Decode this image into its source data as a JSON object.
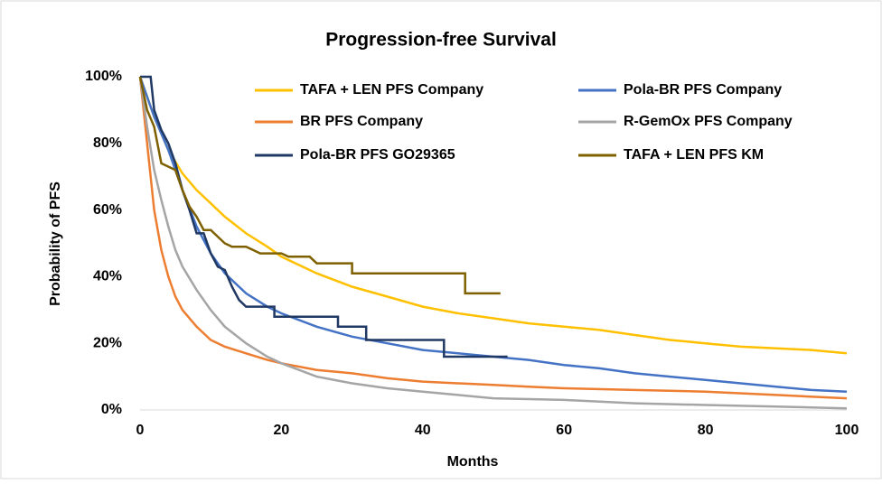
{
  "chart_data": {
    "type": "line",
    "title": "Progression-free Survival",
    "x_label": "Months",
    "y_label": "Probability of PFS",
    "xlim": [
      0,
      100
    ],
    "xticks": [
      0,
      20,
      40,
      60,
      80,
      100
    ],
    "ylim": [
      0,
      100
    ],
    "yticks": [
      {
        "value": 0,
        "label": "0%"
      },
      {
        "value": 20,
        "label": "20%"
      },
      {
        "value": 40,
        "label": "40%"
      },
      {
        "value": 60,
        "label": "60%"
      },
      {
        "value": 80,
        "label": "80%"
      },
      {
        "value": 100,
        "label": "100%"
      }
    ],
    "grid": false,
    "legend": "top",
    "series": [
      {
        "name": "TAFA + LEN PFS Company",
        "color": "#FFC000",
        "x": [
          0,
          2,
          4,
          6,
          8,
          10,
          12,
          15,
          18,
          20,
          25,
          30,
          35,
          40,
          45,
          50,
          55,
          60,
          65,
          70,
          75,
          80,
          85,
          90,
          95,
          100
        ],
        "values": [
          100,
          88,
          78,
          71,
          66,
          62,
          58,
          53,
          49,
          46,
          41,
          37,
          34,
          31,
          29,
          27.5,
          26,
          25,
          24,
          22.5,
          21,
          20,
          19,
          18.5,
          18,
          17
        ]
      },
      {
        "name": "Pola-BR PFS Company",
        "color": "#4472C4",
        "x": [
          0,
          2,
          4,
          6,
          8,
          10,
          12,
          15,
          18,
          20,
          25,
          30,
          35,
          40,
          45,
          50,
          55,
          60,
          65,
          70,
          75,
          80,
          85,
          90,
          95,
          100
        ],
        "values": [
          100,
          88,
          78,
          66,
          55,
          47,
          41,
          35,
          31,
          29,
          25,
          22,
          20,
          18,
          17,
          16,
          15,
          13.5,
          12.5,
          11,
          10,
          9,
          8,
          7,
          6,
          5.5
        ]
      },
      {
        "name": "BR PFS Company",
        "color": "#ED7D31",
        "x": [
          0,
          1,
          2,
          3,
          4,
          5,
          6,
          8,
          10,
          12,
          15,
          18,
          20,
          25,
          30,
          35,
          40,
          45,
          50,
          55,
          60,
          70,
          80,
          90,
          100
        ],
        "values": [
          100,
          80,
          60,
          48,
          40,
          34,
          30,
          25,
          21,
          19,
          17,
          15,
          14,
          12,
          11,
          9.5,
          8.5,
          8,
          7.5,
          7,
          6.5,
          6,
          5.5,
          4.5,
          3.5
        ]
      },
      {
        "name": "R-GemOx PFS Company",
        "color": "#A5A5A5",
        "x": [
          0,
          1,
          2,
          3,
          4,
          5,
          6,
          8,
          10,
          12,
          15,
          18,
          20,
          25,
          30,
          35,
          40,
          45,
          50,
          60,
          65,
          70,
          80,
          90,
          100
        ],
        "values": [
          100,
          85,
          72,
          63,
          55,
          48,
          43,
          36,
          30,
          25,
          20,
          16,
          14,
          10,
          8,
          6.5,
          5.5,
          4.5,
          3.5,
          3,
          2.5,
          2,
          1.5,
          1,
          0.5
        ]
      },
      {
        "name": "Pola-BR PFS GO29365",
        "color": "#203864",
        "x": [
          0,
          1.5,
          2,
          3,
          4,
          5,
          6,
          7,
          8,
          9,
          10,
          11,
          12,
          13,
          14,
          15,
          19,
          19,
          28,
          28,
          32,
          32,
          43,
          43,
          52
        ],
        "values": [
          100,
          100,
          90,
          84,
          80,
          74,
          66,
          60,
          53,
          53,
          47,
          43,
          42,
          37,
          33,
          31,
          31,
          28,
          28,
          25,
          25,
          21,
          21,
          16,
          16
        ]
      },
      {
        "name": "TAFA + LEN PFS KM",
        "color": "#7F6000",
        "x": [
          0,
          1,
          2,
          3,
          5,
          6,
          7,
          8,
          9,
          10,
          11,
          12,
          13,
          15,
          16,
          17,
          20,
          21,
          24,
          25,
          30,
          30,
          46,
          46,
          51
        ],
        "values": [
          100,
          90,
          85,
          74,
          72,
          66,
          61,
          58,
          54,
          54,
          52,
          50,
          49,
          49,
          48,
          47,
          47,
          46,
          46,
          44,
          44,
          41,
          41,
          35,
          35
        ]
      }
    ]
  }
}
